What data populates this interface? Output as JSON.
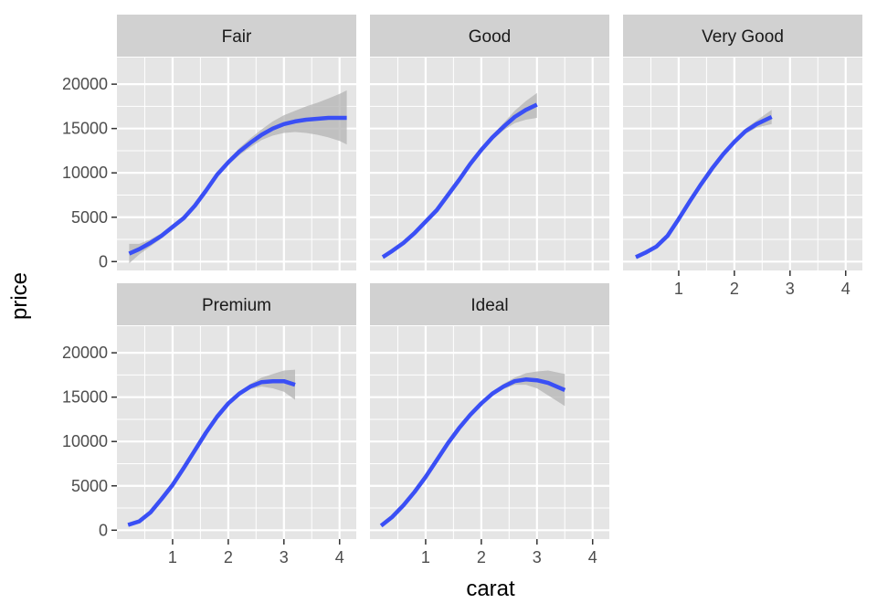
{
  "chart_data": {
    "type": "line",
    "layout": "facet_wrap",
    "x": {
      "label": "carat",
      "range": [
        0.0,
        4.3
      ],
      "ticks": [
        1,
        2,
        3,
        4
      ],
      "tick_labels": [
        "1",
        "2",
        "3",
        "4"
      ]
    },
    "y": {
      "label": "price",
      "range": [
        -1000,
        23000
      ],
      "ticks": [
        0,
        5000,
        10000,
        15000,
        20000
      ],
      "tick_labels": [
        "0",
        "5000",
        "10000",
        "15000",
        "20000"
      ]
    },
    "grid": true,
    "style": {
      "panel_background": "#e5e5e5",
      "grid_color": "#ffffff",
      "strip_background": "#d1d1d1",
      "line_color": "#3a4ff5",
      "ribbon_color": "#b3b3b3",
      "tick_color": "#333333"
    },
    "facets": [
      {
        "label": "Fair",
        "x": [
          0.22,
          0.4,
          0.6,
          0.8,
          1.0,
          1.2,
          1.4,
          1.6,
          1.8,
          2.0,
          2.2,
          2.4,
          2.6,
          2.8,
          3.0,
          3.2,
          3.4,
          3.6,
          3.8,
          4.0,
          4.13
        ],
        "y": [
          900,
          1400,
          2100,
          2900,
          3900,
          4900,
          6300,
          8000,
          9800,
          11200,
          12400,
          13400,
          14300,
          15000,
          15500,
          15800,
          16000,
          16100,
          16200,
          16200,
          16200
        ],
        "lower": [
          -200,
          800,
          1700,
          2600,
          3600,
          4600,
          6000,
          7700,
          9500,
          10900,
          12000,
          12900,
          13700,
          14200,
          14500,
          14600,
          14500,
          14300,
          14000,
          13600,
          13200
        ],
        "upper": [
          2000,
          2000,
          2500,
          3200,
          4200,
          5200,
          6600,
          8300,
          10100,
          11500,
          12800,
          13900,
          14900,
          15800,
          16500,
          17000,
          17500,
          17900,
          18400,
          18900,
          19300
        ]
      },
      {
        "label": "Good",
        "x": [
          0.23,
          0.4,
          0.6,
          0.8,
          1.0,
          1.2,
          1.4,
          1.6,
          1.8,
          2.0,
          2.2,
          2.4,
          2.6,
          2.8,
          3.0
        ],
        "y": [
          500,
          1200,
          2100,
          3200,
          4500,
          5800,
          7500,
          9200,
          11000,
          12600,
          14000,
          15200,
          16300,
          17100,
          17700
        ],
        "lower": [
          300,
          1100,
          2000,
          3100,
          4400,
          5700,
          7400,
          9100,
          10800,
          12400,
          13700,
          14800,
          15600,
          16000,
          16200
        ],
        "upper": [
          700,
          1300,
          2200,
          3300,
          4600,
          5900,
          7600,
          9300,
          11200,
          12800,
          14300,
          15600,
          17000,
          18100,
          19000
        ]
      },
      {
        "label": "Very Good",
        "x": [
          0.23,
          0.4,
          0.6,
          0.8,
          1.0,
          1.2,
          1.4,
          1.6,
          1.8,
          2.0,
          2.2,
          2.4,
          2.6,
          2.67
        ],
        "y": [
          500,
          1000,
          1700,
          2900,
          4800,
          6800,
          8700,
          10500,
          12100,
          13500,
          14700,
          15500,
          16100,
          16300
        ],
        "lower": [
          400,
          900,
          1600,
          2800,
          4700,
          6700,
          8600,
          10400,
          11900,
          13300,
          14400,
          15100,
          15400,
          15500
        ],
        "upper": [
          600,
          1100,
          1800,
          3000,
          4900,
          6900,
          8800,
          10600,
          12300,
          13700,
          15000,
          15900,
          16800,
          17100
        ]
      },
      {
        "label": "Premium",
        "x": [
          0.2,
          0.4,
          0.6,
          0.8,
          1.0,
          1.2,
          1.4,
          1.6,
          1.8,
          2.0,
          2.2,
          2.4,
          2.6,
          2.8,
          3.0,
          3.2
        ],
        "y": [
          600,
          1000,
          2000,
          3500,
          5100,
          7000,
          9000,
          11000,
          12800,
          14300,
          15400,
          16200,
          16700,
          16800,
          16800,
          16400
        ],
        "lower": [
          500,
          900,
          1900,
          3400,
          5000,
          6900,
          8900,
          10900,
          12700,
          14100,
          15200,
          15900,
          16200,
          16000,
          15600,
          14700
        ],
        "upper": [
          700,
          1100,
          2100,
          3600,
          5200,
          7100,
          9100,
          11100,
          12900,
          14500,
          15600,
          16500,
          17200,
          17600,
          18000,
          18100
        ]
      },
      {
        "label": "Ideal",
        "x": [
          0.2,
          0.4,
          0.6,
          0.8,
          1.0,
          1.2,
          1.4,
          1.6,
          1.8,
          2.0,
          2.2,
          2.4,
          2.6,
          2.8,
          3.0,
          3.2,
          3.5
        ],
        "y": [
          500,
          1500,
          2800,
          4300,
          6000,
          7900,
          9800,
          11500,
          13000,
          14300,
          15400,
          16200,
          16800,
          17000,
          16900,
          16600,
          15800
        ],
        "lower": [
          400,
          1400,
          2700,
          4200,
          5900,
          7800,
          9700,
          11400,
          12900,
          14100,
          15200,
          15900,
          16400,
          16400,
          16000,
          15200,
          14000
        ],
        "upper": [
          600,
          1600,
          2900,
          4400,
          6100,
          8000,
          9900,
          11600,
          13100,
          14500,
          15600,
          16500,
          17200,
          17700,
          17900,
          18000,
          17600
        ]
      }
    ]
  }
}
